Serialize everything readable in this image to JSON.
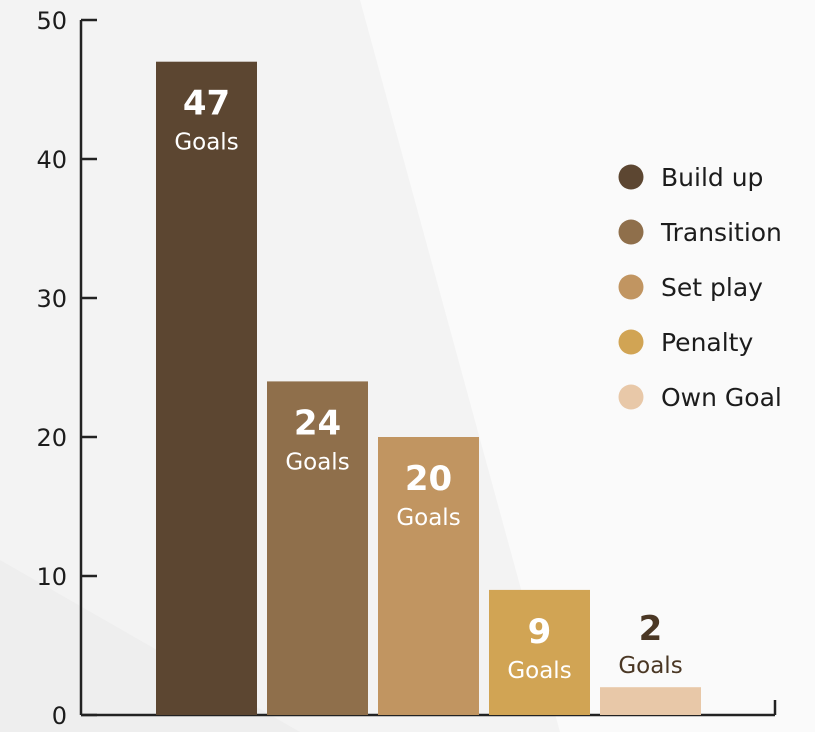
{
  "chart_data": {
    "type": "bar",
    "categories": [
      "Build up",
      "Transition",
      "Set play",
      "Penalty",
      "Own Goal"
    ],
    "values": [
      47,
      24,
      20,
      9,
      2
    ],
    "value_labels": [
      {
        "number": "47",
        "unit": "Goals"
      },
      {
        "number": "24",
        "unit": "Goals"
      },
      {
        "number": "20",
        "unit": "Goals"
      },
      {
        "number": "9",
        "unit": "Goals"
      },
      {
        "number": "2",
        "unit": "Goals"
      }
    ],
    "colors": [
      "#5c4631",
      "#8f6f4b",
      "#c19561",
      "#d1a454",
      "#e8c8a8"
    ],
    "label_colors": [
      "#ffffff",
      "#ffffff",
      "#ffffff",
      "#ffffff",
      "#4a3724"
    ],
    "ylim": [
      0,
      50
    ],
    "yticks": [
      0,
      10,
      20,
      30,
      40,
      50
    ],
    "legend": {
      "position": "right",
      "items": [
        "Build up",
        "Transition",
        "Set play",
        "Penalty",
        "Own Goal"
      ]
    },
    "grid": false,
    "title": "",
    "xlabel": "",
    "ylabel": ""
  }
}
